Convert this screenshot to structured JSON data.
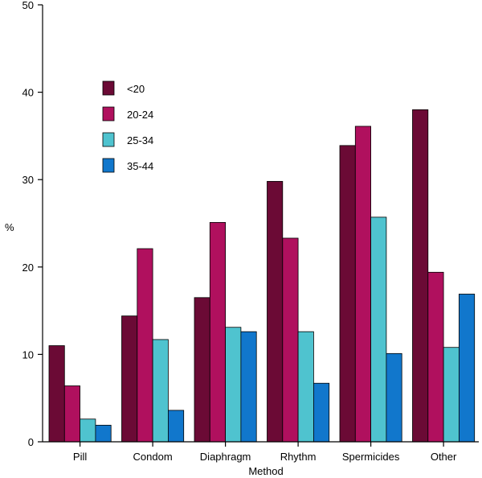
{
  "chart_data": {
    "type": "bar",
    "title": "",
    "xlabel": "Method",
    "ylabel": "%",
    "ylim": [
      0,
      50
    ],
    "yticks": [
      0,
      10,
      20,
      30,
      40,
      50
    ],
    "grid": false,
    "legend_position": "top-left",
    "categories": [
      "Pill",
      "Condom",
      "Diaphragm",
      "Rhythm",
      "Spermicides",
      "Other"
    ],
    "series": [
      {
        "name": "<20",
        "color": "#6b0a35",
        "values": [
          11.0,
          14.4,
          16.5,
          29.8,
          33.9,
          38.0
        ]
      },
      {
        "name": "20-24",
        "color": "#b0105e",
        "values": [
          6.4,
          22.1,
          25.1,
          23.3,
          36.1,
          19.4
        ]
      },
      {
        "name": "25-34",
        "color": "#4fc3cf",
        "values": [
          2.6,
          11.7,
          13.1,
          12.6,
          25.7,
          10.8
        ]
      },
      {
        "name": "35-44",
        "color": "#1177cc",
        "values": [
          1.9,
          3.6,
          12.6,
          6.7,
          10.1,
          16.9
        ]
      }
    ]
  }
}
